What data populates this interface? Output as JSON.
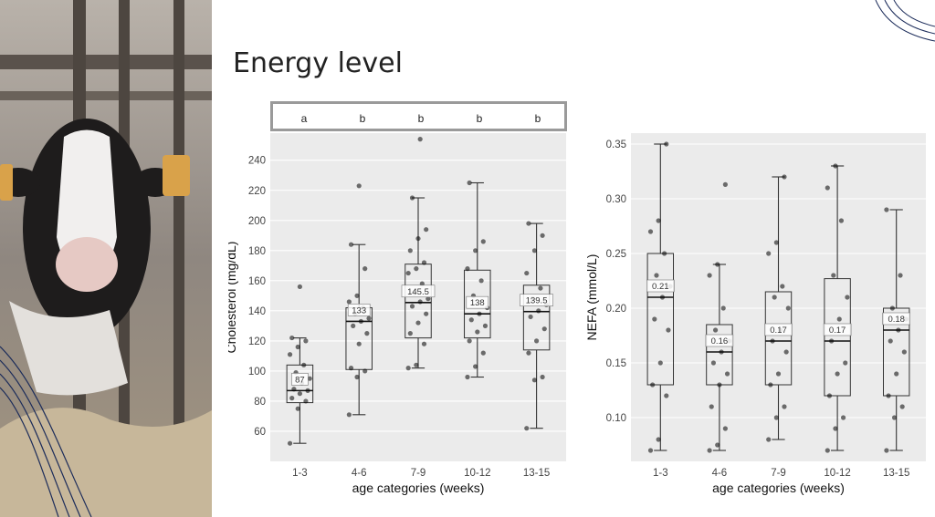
{
  "slide": {
    "title": "Energy level"
  },
  "significance_letters": [
    "a",
    "b",
    "b",
    "b",
    "b"
  ],
  "colors": {
    "panel": "#ebebeb",
    "grid": "#ffffff",
    "point": "#000000",
    "box": "#333333"
  },
  "chart_data": [
    {
      "type": "box",
      "title": "",
      "xlabel": "age categories (weeks)",
      "ylabel": "Cholesterol (mg/dL)",
      "categories": [
        "1-3",
        "4-6",
        "7-9",
        "10-12",
        "13-15"
      ],
      "ylim": [
        40,
        258
      ],
      "yticks": [
        60,
        80,
        100,
        120,
        140,
        160,
        180,
        200,
        220,
        240
      ],
      "ytick_labels": [
        "60",
        "80",
        "100",
        "120",
        "140",
        "160",
        "180",
        "200",
        "220",
        "240"
      ],
      "boxes": [
        {
          "q1": 79,
          "median": 87,
          "q3": 104,
          "whisker_low": 52,
          "whisker_high": 122
        },
        {
          "q1": 101,
          "median": 133,
          "q3": 142,
          "whisker_low": 71,
          "whisker_high": 184
        },
        {
          "q1": 122,
          "median": 145.5,
          "q3": 171,
          "whisker_low": 102,
          "whisker_high": 215
        },
        {
          "q1": 122,
          "median": 138,
          "q3": 167,
          "whisker_low": 96,
          "whisker_high": 225
        },
        {
          "q1": 114,
          "median": 139.5,
          "q3": 157,
          "whisker_low": 62,
          "whisker_high": 198
        }
      ],
      "median_labels": [
        "87",
        "133",
        "145.5",
        "138",
        "139.5"
      ],
      "points": [
        [
          52,
          75,
          80,
          82,
          85,
          87,
          88,
          92,
          95,
          99,
          104,
          111,
          116,
          120,
          122,
          156
        ],
        [
          71,
          96,
          100,
          102,
          118,
          125,
          130,
          133,
          135,
          138,
          142,
          146,
          150,
          168,
          184,
          223
        ],
        [
          102,
          104,
          118,
          125,
          132,
          138,
          143,
          146,
          148,
          152,
          158,
          165,
          168,
          172,
          180,
          188,
          194,
          215,
          254
        ],
        [
          96,
          103,
          112,
          120,
          126,
          130,
          134,
          138,
          142,
          150,
          160,
          168,
          180,
          186,
          225
        ],
        [
          62,
          94,
          96,
          112,
          120,
          128,
          136,
          140,
          144,
          148,
          155,
          165,
          180,
          190,
          198
        ]
      ]
    },
    {
      "type": "box",
      "title": "",
      "xlabel": "age categories (weeks)",
      "ylabel": "NEFA (mmol/L)",
      "categories": [
        "1-3",
        "4-6",
        "7-9",
        "10-12",
        "13-15"
      ],
      "ylim": [
        0.06,
        0.36
      ],
      "yticks": [
        0.1,
        0.15,
        0.2,
        0.25,
        0.3,
        0.35
      ],
      "ytick_labels": [
        "0.10",
        "0.15",
        "0.20",
        "0.25",
        "0.30",
        "0.35"
      ],
      "boxes": [
        {
          "q1": 0.13,
          "median": 0.21,
          "q3": 0.25,
          "whisker_low": 0.07,
          "whisker_high": 0.35
        },
        {
          "q1": 0.13,
          "median": 0.16,
          "q3": 0.185,
          "whisker_low": 0.07,
          "whisker_high": 0.24
        },
        {
          "q1": 0.13,
          "median": 0.17,
          "q3": 0.215,
          "whisker_low": 0.08,
          "whisker_high": 0.32
        },
        {
          "q1": 0.12,
          "median": 0.17,
          "q3": 0.227,
          "whisker_low": 0.07,
          "whisker_high": 0.33
        },
        {
          "q1": 0.12,
          "median": 0.18,
          "q3": 0.2,
          "whisker_low": 0.07,
          "whisker_high": 0.29
        }
      ],
      "median_labels": [
        "0.21",
        "0.16",
        "0.17",
        "0.17",
        "0.18"
      ],
      "points": [
        [
          0.07,
          0.08,
          0.12,
          0.13,
          0.15,
          0.18,
          0.19,
          0.21,
          0.22,
          0.23,
          0.25,
          0.27,
          0.28,
          0.35
        ],
        [
          0.07,
          0.075,
          0.09,
          0.11,
          0.13,
          0.14,
          0.15,
          0.16,
          0.17,
          0.18,
          0.2,
          0.23,
          0.24,
          0.313
        ],
        [
          0.08,
          0.1,
          0.11,
          0.13,
          0.14,
          0.16,
          0.17,
          0.18,
          0.2,
          0.21,
          0.22,
          0.25,
          0.26,
          0.32
        ],
        [
          0.07,
          0.09,
          0.1,
          0.12,
          0.14,
          0.15,
          0.17,
          0.19,
          0.21,
          0.23,
          0.28,
          0.31,
          0.33
        ],
        [
          0.07,
          0.1,
          0.11,
          0.12,
          0.14,
          0.16,
          0.17,
          0.18,
          0.19,
          0.2,
          0.23,
          0.29
        ]
      ]
    }
  ]
}
